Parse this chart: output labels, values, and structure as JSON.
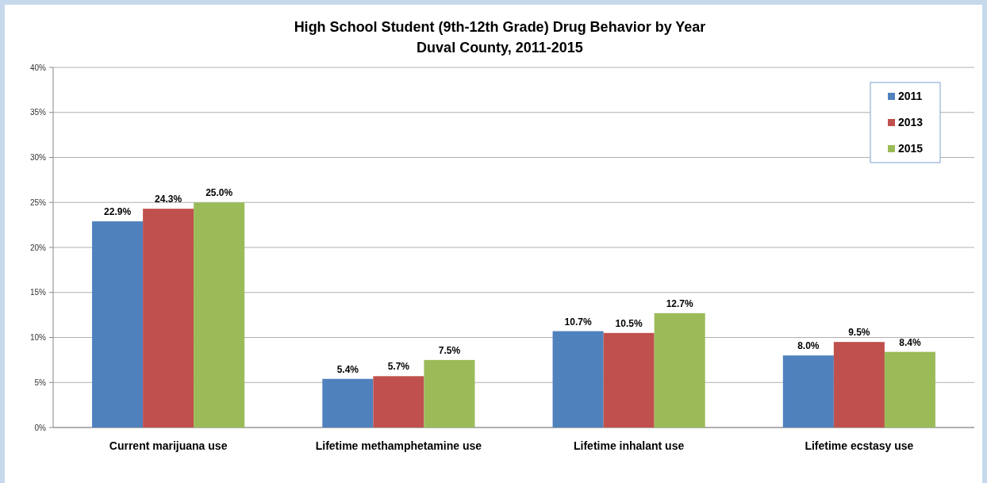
{
  "chart_data": {
    "type": "bar",
    "title": "High School Student (9th-12th Grade) Drug Behavior by Year",
    "subtitle": "Duval County, 2011-2015",
    "categories": [
      "Current marijuana use",
      "Lifetime methamphetamine use",
      "Lifetime inhalant use",
      "Lifetime ecstasy use"
    ],
    "series": [
      {
        "name": "2011",
        "color": "#4f81bd",
        "values": [
          22.9,
          5.4,
          10.7,
          8.0
        ],
        "value_labels": [
          "22.9%",
          "5.4%",
          "10.7%",
          "8.0%"
        ]
      },
      {
        "name": "2013",
        "color": "#c0504d",
        "values": [
          24.3,
          5.7,
          10.5,
          9.5
        ],
        "value_labels": [
          "24.3%",
          "5.7%",
          "10.5%",
          "9.5%"
        ]
      },
      {
        "name": "2015",
        "color": "#9bbb59",
        "values": [
          25.0,
          7.5,
          12.7,
          8.4
        ],
        "value_labels": [
          "25.0%",
          "7.5%",
          "12.7%",
          "8.4%"
        ]
      }
    ],
    "ylim": [
      0,
      40
    ],
    "yticks": [
      {
        "value": 0,
        "label": "0%"
      },
      {
        "value": 5,
        "label": "5%"
      },
      {
        "value": 10,
        "label": "10%"
      },
      {
        "value": 15,
        "label": "15%"
      },
      {
        "value": 20,
        "label": "20%"
      },
      {
        "value": 25,
        "label": "25%"
      },
      {
        "value": 30,
        "label": "30%"
      },
      {
        "value": 35,
        "label": "35%"
      },
      {
        "value": 40,
        "label": "40%"
      }
    ],
    "grid": "y",
    "legend": "top right"
  }
}
